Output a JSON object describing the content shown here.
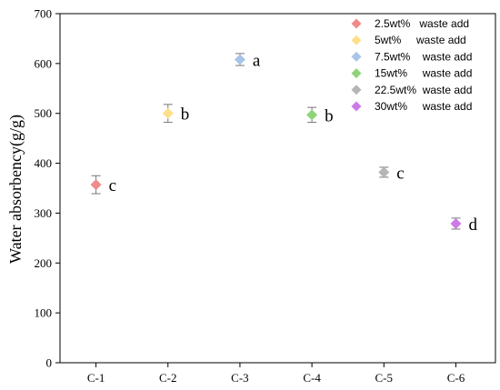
{
  "chart_data": {
    "type": "scatter",
    "title": "",
    "xlabel": "",
    "ylabel": "Water absorbency(g/g)",
    "ylim": [
      0,
      700
    ],
    "yticks": [
      0,
      100,
      200,
      300,
      400,
      500,
      600,
      700
    ],
    "categories": [
      "C-1",
      "C-2",
      "C-3",
      "C-4",
      "C-5",
      "C-6"
    ],
    "grid": false,
    "legend_position": "top-right",
    "series": [
      {
        "name": "2.5wt%   waste add",
        "category": "C-1",
        "value": 357,
        "error": 18,
        "letter": "c",
        "color": "#f08a8a"
      },
      {
        "name": "5wt%     waste add",
        "category": "C-2",
        "value": 500,
        "error": 18,
        "letter": "b",
        "color": "#ffe08a"
      },
      {
        "name": "7.5wt%    waste add",
        "category": "C-3",
        "value": 608,
        "error": 12,
        "letter": "a",
        "color": "#a8c4e6"
      },
      {
        "name": "15wt%     waste add",
        "category": "C-4",
        "value": 497,
        "error": 15,
        "letter": "b",
        "color": "#8fd47a"
      },
      {
        "name": "22.5wt%  waste add",
        "category": "C-5",
        "value": 382,
        "error": 10,
        "letter": "c",
        "color": "#b5b5b5"
      },
      {
        "name": "30wt%     waste add",
        "category": "C-6",
        "value": 279,
        "error": 11,
        "letter": "d",
        "color": "#cc7ae8"
      }
    ]
  }
}
